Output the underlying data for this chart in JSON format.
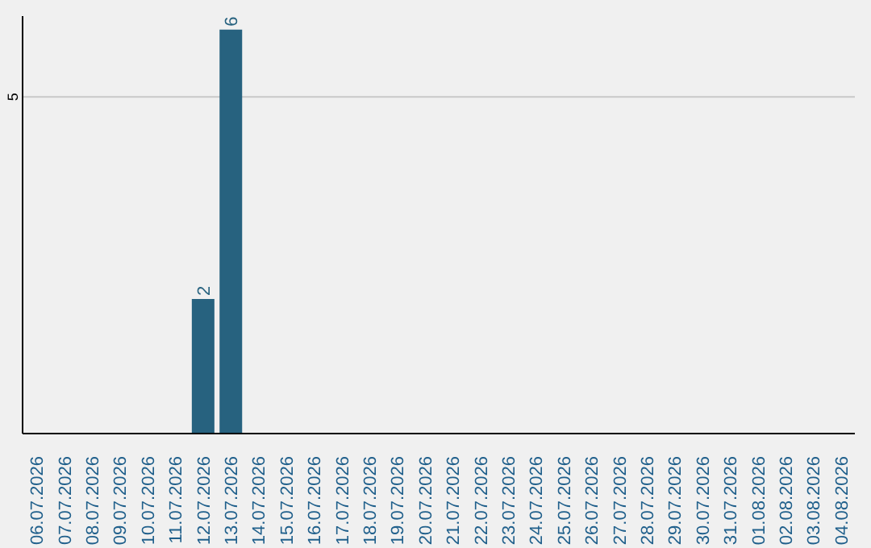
{
  "chart_data": {
    "type": "bar",
    "categories": [
      "06.07.2026",
      "07.07.2026",
      "08.07.2026",
      "09.07.2026",
      "10.07.2026",
      "11.07.2026",
      "12.07.2026",
      "13.07.2026",
      "14.07.2026",
      "15.07.2026",
      "16.07.2026",
      "17.07.2026",
      "18.07.2026",
      "19.07.2026",
      "20.07.2026",
      "21.07.2026",
      "22.07.2026",
      "23.07.2026",
      "24.07.2026",
      "25.07.2026",
      "26.07.2026",
      "27.07.2026",
      "28.07.2026",
      "29.07.2026",
      "30.07.2026",
      "31.07.2026",
      "01.08.2026",
      "02.08.2026",
      "03.08.2026",
      "04.08.2026"
    ],
    "values": [
      0,
      0,
      0,
      0,
      0,
      0,
      2,
      6,
      0,
      0,
      0,
      0,
      0,
      0,
      0,
      0,
      0,
      0,
      0,
      0,
      0,
      0,
      0,
      0,
      0,
      0,
      0,
      0,
      0,
      0
    ],
    "value_labels": [
      null,
      null,
      null,
      null,
      null,
      null,
      "2",
      "6",
      null,
      null,
      null,
      null,
      null,
      null,
      null,
      null,
      null,
      null,
      null,
      null,
      null,
      null,
      null,
      null,
      null,
      null,
      null,
      null,
      null,
      null
    ],
    "color": "#27627f",
    "ylim": [
      0,
      6.2
    ],
    "yticks": [
      5
    ],
    "grid": "y"
  }
}
